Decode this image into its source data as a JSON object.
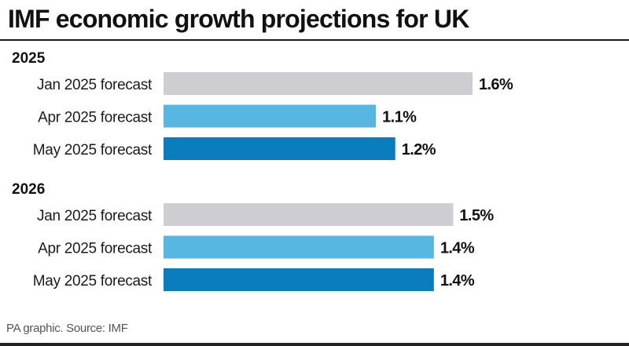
{
  "chart_data": {
    "type": "bar",
    "orientation": "horizontal",
    "title": "IMF economic growth projections for UK",
    "xlabel": "",
    "ylabel": "",
    "unit": "%",
    "xlim": [
      0,
      1.6
    ],
    "grid": false,
    "legend": "none",
    "groups": [
      {
        "label": "2025",
        "bars": [
          {
            "category": "Jan 2025 forecast",
            "value": 1.6,
            "label": "1.6%",
            "color": "#cdcdd2"
          },
          {
            "category": "Apr 2025 forecast",
            "value": 1.1,
            "label": "1.1%",
            "color": "#57b7e0"
          },
          {
            "category": "May 2025 forecast",
            "value": 1.2,
            "label": "1.2%",
            "color": "#0a7dbf"
          }
        ]
      },
      {
        "label": "2026",
        "bars": [
          {
            "category": "Jan 2025 forecast",
            "value": 1.5,
            "label": "1.5%",
            "color": "#cdcdd2"
          },
          {
            "category": "Apr 2025 forecast",
            "value": 1.4,
            "label": "1.4%",
            "color": "#57b7e0"
          },
          {
            "category": "May 2025 forecast",
            "value": 1.4,
            "label": "1.4%",
            "color": "#0a7dbf"
          }
        ]
      }
    ]
  },
  "footer": {
    "source": "PA graphic. Source: IMF"
  }
}
